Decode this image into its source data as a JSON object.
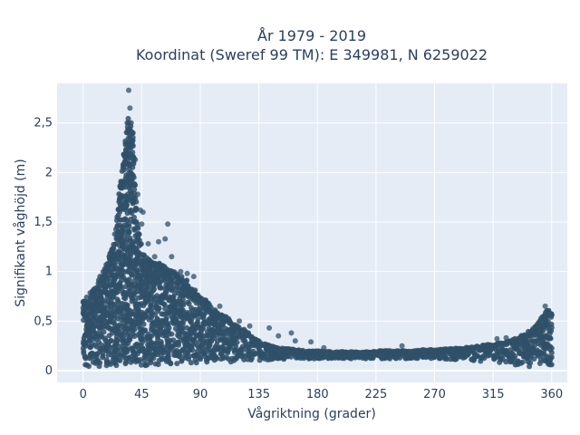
{
  "chart_data": {
    "type": "scatter",
    "title_line1": "År 1979 - 2019",
    "title_line2": "Koordinat (Sweref 99 TM): E 349981, N 6259022",
    "xlabel": "Vågriktning (grader)",
    "ylabel": "Signifikant våghöjd (m)",
    "xlim": [
      -20,
      372
    ],
    "ylim": [
      -0.12,
      2.9
    ],
    "x_ticks": [
      0,
      45,
      90,
      135,
      180,
      225,
      270,
      315,
      360
    ],
    "x_tick_labels": [
      "0",
      "45",
      "90",
      "135",
      "180",
      "225",
      "270",
      "315",
      "360"
    ],
    "y_ticks": [
      0,
      0.5,
      1,
      1.5,
      2,
      2.5
    ],
    "y_tick_labels": [
      "0",
      "0,5",
      "1",
      "1,5",
      "2",
      "2,5"
    ],
    "grid": true,
    "marker_color": "#2f5068",
    "plot_bg": "#e5ecf6",
    "envelope": {
      "direction": [
        0,
        5,
        10,
        15,
        20,
        25,
        28,
        31,
        34,
        36,
        38,
        41,
        45,
        50,
        55,
        60,
        65,
        70,
        75,
        80,
        85,
        90,
        95,
        100,
        105,
        110,
        115,
        120,
        125,
        130,
        135,
        140,
        145,
        150,
        160,
        170,
        180,
        190,
        200,
        210,
        220,
        230,
        240,
        250,
        260,
        270,
        280,
        290,
        300,
        310,
        320,
        330,
        340,
        345,
        350,
        355,
        360
      ],
      "upper_hs": [
        0.7,
        0.78,
        0.85,
        1.0,
        1.15,
        1.45,
        1.8,
        2.2,
        2.5,
        2.6,
        2.4,
        1.6,
        1.2,
        1.12,
        1.1,
        1.08,
        1.05,
        1.0,
        0.98,
        0.9,
        0.82,
        0.75,
        0.7,
        0.62,
        0.58,
        0.55,
        0.5,
        0.45,
        0.4,
        0.35,
        0.3,
        0.27,
        0.25,
        0.23,
        0.22,
        0.2,
        0.2,
        0.19,
        0.19,
        0.19,
        0.19,
        0.2,
        0.2,
        0.2,
        0.21,
        0.21,
        0.22,
        0.23,
        0.24,
        0.26,
        0.28,
        0.31,
        0.38,
        0.42,
        0.5,
        0.6,
        0.62
      ],
      "lower_hs": [
        0.03,
        0.03,
        0.03,
        0.04,
        0.04,
        0.05,
        0.05,
        0.05,
        0.05,
        0.05,
        0.05,
        0.05,
        0.05,
        0.05,
        0.05,
        0.06,
        0.06,
        0.06,
        0.07,
        0.07,
        0.07,
        0.08,
        0.08,
        0.08,
        0.08,
        0.08,
        0.09,
        0.09,
        0.09,
        0.1,
        0.1,
        0.1,
        0.11,
        0.11,
        0.12,
        0.12,
        0.12,
        0.12,
        0.12,
        0.12,
        0.12,
        0.12,
        0.12,
        0.12,
        0.12,
        0.12,
        0.11,
        0.11,
        0.1,
        0.09,
        0.08,
        0.06,
        0.04,
        0.03,
        0.03,
        0.03,
        0.03
      ]
    },
    "outliers": [
      {
        "x": 35,
        "y": 2.83
      },
      {
        "x": 36,
        "y": 2.65
      },
      {
        "x": 38,
        "y": 2.4
      },
      {
        "x": 40,
        "y": 2.13
      },
      {
        "x": 42,
        "y": 1.78
      },
      {
        "x": 44,
        "y": 1.62
      },
      {
        "x": 46,
        "y": 1.6
      },
      {
        "x": 45,
        "y": 1.48
      },
      {
        "x": 50,
        "y": 1.28
      },
      {
        "x": 55,
        "y": 1.15
      },
      {
        "x": 58,
        "y": 1.3
      },
      {
        "x": 63,
        "y": 1.33
      },
      {
        "x": 65,
        "y": 1.48
      },
      {
        "x": 68,
        "y": 1.15
      },
      {
        "x": 75,
        "y": 1.0
      },
      {
        "x": 80,
        "y": 0.98
      },
      {
        "x": 85,
        "y": 0.95
      },
      {
        "x": 90,
        "y": 0.73
      },
      {
        "x": 95,
        "y": 0.67
      },
      {
        "x": 105,
        "y": 0.65
      },
      {
        "x": 120,
        "y": 0.5
      },
      {
        "x": 128,
        "y": 0.45
      },
      {
        "x": 143,
        "y": 0.43
      },
      {
        "x": 150,
        "y": 0.35
      },
      {
        "x": 160,
        "y": 0.38
      },
      {
        "x": 163,
        "y": 0.3
      },
      {
        "x": 175,
        "y": 0.29
      },
      {
        "x": 185,
        "y": 0.23
      },
      {
        "x": 245,
        "y": 0.25
      },
      {
        "x": 318,
        "y": 0.32
      },
      {
        "x": 325,
        "y": 0.33
      },
      {
        "x": 355,
        "y": 0.65
      }
    ]
  }
}
